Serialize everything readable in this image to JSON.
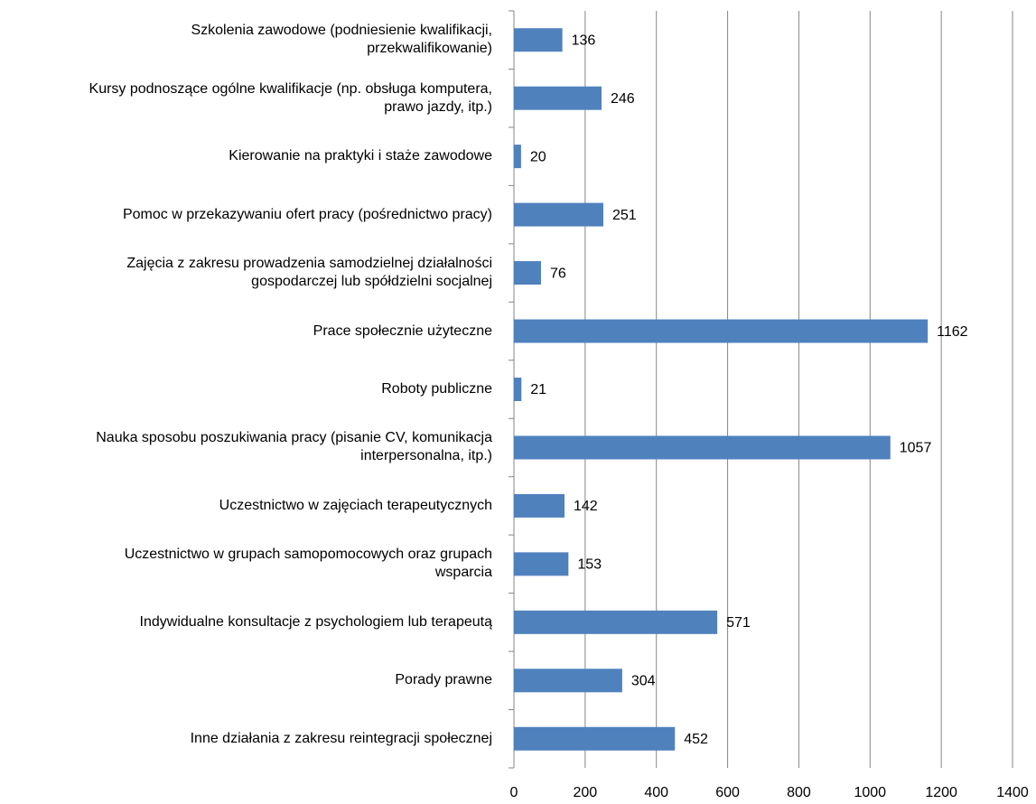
{
  "chart_data": {
    "type": "bar",
    "orientation": "horizontal",
    "categories": [
      "Szkolenia zawodowe (podniesienie kwalifikacji,\nprzekwalifikowanie)",
      "Kursy podnoszące ogólne kwalifikacje (np. obsługa komputera,\nprawo jazdy, itp.)",
      "Kierowanie na praktyki i staże zawodowe",
      "Pomoc w przekazywaniu ofert pracy (pośrednictwo pracy)",
      "Zajęcia z zakresu prowadzenia samodzielnej działalności\ngospodarczej lub spółdzielni socjalnej",
      "Prace społecznie użyteczne",
      "Roboty publiczne",
      "Nauka sposobu poszukiwania pracy (pisanie CV, komunikacja\ninterpersonalna, itp.)",
      "Uczestnictwo w zajęciach terapeutycznych",
      "Uczestnictwo w grupach samopomocowych oraz grupach\nwsparcia",
      "Indywidualne konsultacje z psychologiem lub terapeutą",
      "Porady prawne",
      "Inne działania z zakresu reintegracji społecznej"
    ],
    "values": [
      136,
      246,
      20,
      251,
      76,
      1162,
      21,
      1057,
      142,
      153,
      571,
      304,
      452
    ],
    "color": "#4f81bd",
    "xlim": [
      0,
      1400
    ],
    "xticks": [
      0,
      200,
      400,
      600,
      800,
      1000,
      1200,
      1400
    ],
    "grid": true
  }
}
